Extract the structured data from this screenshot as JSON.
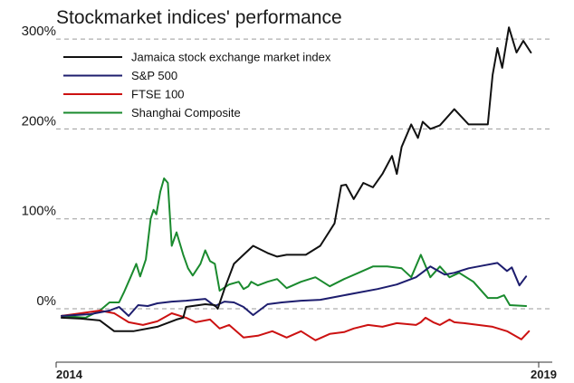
{
  "chart_data": {
    "type": "line",
    "title": "Stockmarket indices' performance",
    "xlabel": "",
    "ylabel": "",
    "x_tick_labels": [
      "2014",
      "2019"
    ],
    "y_ticks": [
      {
        "value": 0,
        "label": "0%"
      },
      {
        "value": 100,
        "label": "100%"
      },
      {
        "value": 200,
        "label": "200%"
      },
      {
        "value": 300,
        "label": "300%"
      }
    ],
    "xlim": [
      2014.0,
      2019.0
    ],
    "ylim": [
      -80,
      320
    ],
    "grid": "horizontal dashed",
    "legend_position": "top-left",
    "series": [
      {
        "name": "Jamaica stock exchange market index",
        "color": "#111111",
        "points": [
          [
            2014.0,
            -10
          ],
          [
            2014.2,
            -11
          ],
          [
            2014.4,
            -13
          ],
          [
            2014.55,
            -25
          ],
          [
            2014.75,
            -25
          ],
          [
            2015.0,
            -20
          ],
          [
            2015.2,
            -12
          ],
          [
            2015.27,
            -10
          ],
          [
            2015.3,
            2
          ],
          [
            2015.5,
            5
          ],
          [
            2015.6,
            4
          ],
          [
            2015.63,
            0
          ],
          [
            2015.7,
            22
          ],
          [
            2015.8,
            50
          ],
          [
            2015.9,
            60
          ],
          [
            2016.0,
            70
          ],
          [
            2016.15,
            62
          ],
          [
            2016.25,
            58
          ],
          [
            2016.35,
            60
          ],
          [
            2016.45,
            60
          ],
          [
            2016.55,
            60
          ],
          [
            2016.7,
            70
          ],
          [
            2016.85,
            95
          ],
          [
            2016.92,
            137
          ],
          [
            2016.97,
            138
          ],
          [
            2017.05,
            122
          ],
          [
            2017.15,
            140
          ],
          [
            2017.25,
            135
          ],
          [
            2017.35,
            150
          ],
          [
            2017.45,
            170
          ],
          [
            2017.5,
            150
          ],
          [
            2017.55,
            180
          ],
          [
            2017.65,
            205
          ],
          [
            2017.72,
            190
          ],
          [
            2017.77,
            208
          ],
          [
            2017.85,
            200
          ],
          [
            2017.95,
            204
          ],
          [
            2018.1,
            222
          ],
          [
            2018.25,
            205
          ],
          [
            2018.45,
            205
          ],
          [
            2018.5,
            260
          ],
          [
            2018.55,
            290
          ],
          [
            2018.6,
            268
          ],
          [
            2018.67,
            313
          ],
          [
            2018.75,
            285
          ],
          [
            2018.82,
            298
          ],
          [
            2018.9,
            285
          ]
        ]
      },
      {
        "name": "S&P 500",
        "color": "#1d1d6e",
        "points": [
          [
            2014.0,
            -8
          ],
          [
            2014.3,
            -6
          ],
          [
            2014.5,
            -2
          ],
          [
            2014.6,
            2
          ],
          [
            2014.7,
            -8
          ],
          [
            2014.8,
            4
          ],
          [
            2014.9,
            3
          ],
          [
            2015.0,
            6
          ],
          [
            2015.15,
            8
          ],
          [
            2015.3,
            9
          ],
          [
            2015.5,
            11
          ],
          [
            2015.6,
            3
          ],
          [
            2015.7,
            8
          ],
          [
            2015.8,
            7
          ],
          [
            2015.9,
            2
          ],
          [
            2016.0,
            -7
          ],
          [
            2016.15,
            5
          ],
          [
            2016.3,
            7
          ],
          [
            2016.5,
            9
          ],
          [
            2016.7,
            10
          ],
          [
            2016.9,
            14
          ],
          [
            2017.1,
            18
          ],
          [
            2017.3,
            22
          ],
          [
            2017.5,
            27
          ],
          [
            2017.7,
            35
          ],
          [
            2017.85,
            47
          ],
          [
            2018.0,
            38
          ],
          [
            2018.1,
            40
          ],
          [
            2018.25,
            45
          ],
          [
            2018.4,
            48
          ],
          [
            2018.55,
            51
          ],
          [
            2018.65,
            42
          ],
          [
            2018.7,
            46
          ],
          [
            2018.78,
            26
          ],
          [
            2018.85,
            36
          ]
        ]
      },
      {
        "name": "FTSE 100",
        "color": "#cc1111",
        "points": [
          [
            2014.0,
            -8
          ],
          [
            2014.2,
            -5
          ],
          [
            2014.4,
            -2
          ],
          [
            2014.55,
            -5
          ],
          [
            2014.7,
            -15
          ],
          [
            2014.85,
            -18
          ],
          [
            2015.0,
            -14
          ],
          [
            2015.15,
            -5
          ],
          [
            2015.3,
            -10
          ],
          [
            2015.4,
            -15
          ],
          [
            2015.55,
            -12
          ],
          [
            2015.65,
            -22
          ],
          [
            2015.75,
            -18
          ],
          [
            2015.9,
            -32
          ],
          [
            2016.05,
            -30
          ],
          [
            2016.2,
            -25
          ],
          [
            2016.35,
            -32
          ],
          [
            2016.5,
            -25
          ],
          [
            2016.65,
            -35
          ],
          [
            2016.8,
            -28
          ],
          [
            2016.95,
            -26
          ],
          [
            2017.05,
            -22
          ],
          [
            2017.2,
            -18
          ],
          [
            2017.35,
            -20
          ],
          [
            2017.5,
            -16
          ],
          [
            2017.6,
            -17
          ],
          [
            2017.7,
            -18
          ],
          [
            2017.75,
            -15
          ],
          [
            2017.8,
            -10
          ],
          [
            2017.88,
            -15
          ],
          [
            2017.95,
            -18
          ],
          [
            2018.05,
            -12
          ],
          [
            2018.1,
            -15
          ],
          [
            2018.2,
            -16
          ],
          [
            2018.35,
            -18
          ],
          [
            2018.5,
            -20
          ],
          [
            2018.65,
            -25
          ],
          [
            2018.8,
            -34
          ],
          [
            2018.88,
            -25
          ]
        ]
      },
      {
        "name": "Shanghai Composite",
        "color": "#1a8a2e",
        "points": [
          [
            2014.0,
            -8
          ],
          [
            2014.25,
            -10
          ],
          [
            2014.4,
            -2
          ],
          [
            2014.5,
            7
          ],
          [
            2014.6,
            7
          ],
          [
            2014.65,
            18
          ],
          [
            2014.72,
            35
          ],
          [
            2014.78,
            50
          ],
          [
            2014.82,
            36
          ],
          [
            2014.88,
            55
          ],
          [
            2014.93,
            100
          ],
          [
            2014.96,
            110
          ],
          [
            2014.99,
            105
          ],
          [
            2015.03,
            130
          ],
          [
            2015.07,
            145
          ],
          [
            2015.11,
            140
          ],
          [
            2015.15,
            70
          ],
          [
            2015.2,
            85
          ],
          [
            2015.27,
            60
          ],
          [
            2015.32,
            45
          ],
          [
            2015.37,
            37
          ],
          [
            2015.45,
            50
          ],
          [
            2015.5,
            65
          ],
          [
            2015.55,
            53
          ],
          [
            2015.6,
            50
          ],
          [
            2015.65,
            20
          ],
          [
            2015.75,
            27
          ],
          [
            2015.85,
            30
          ],
          [
            2015.9,
            22
          ],
          [
            2015.95,
            25
          ],
          [
            2015.98,
            30
          ],
          [
            2016.05,
            26
          ],
          [
            2016.15,
            30
          ],
          [
            2016.25,
            33
          ],
          [
            2016.35,
            23
          ],
          [
            2016.5,
            30
          ],
          [
            2016.65,
            35
          ],
          [
            2016.8,
            25
          ],
          [
            2016.95,
            33
          ],
          [
            2017.1,
            40
          ],
          [
            2017.25,
            47
          ],
          [
            2017.4,
            47
          ],
          [
            2017.55,
            45
          ],
          [
            2017.65,
            35
          ],
          [
            2017.75,
            60
          ],
          [
            2017.85,
            35
          ],
          [
            2017.95,
            47
          ],
          [
            2018.05,
            35
          ],
          [
            2018.15,
            40
          ],
          [
            2018.3,
            30
          ],
          [
            2018.45,
            12
          ],
          [
            2018.55,
            12
          ],
          [
            2018.62,
            15
          ],
          [
            2018.68,
            4
          ],
          [
            2018.85,
            3
          ]
        ]
      }
    ]
  }
}
